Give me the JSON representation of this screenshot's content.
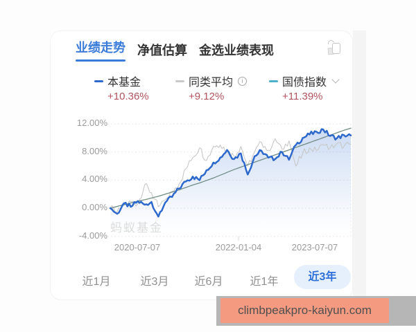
{
  "tabs": {
    "items": [
      {
        "label": "业绩走势",
        "active": true
      },
      {
        "label": "净值估算",
        "active": false
      },
      {
        "label": "金选业绩表现",
        "active": false
      }
    ]
  },
  "header": {
    "corner_icon": "copy-rotate-icon"
  },
  "legend": {
    "items": [
      {
        "name": "本基金",
        "value": "+10.36%",
        "dash_color": "#2D68CC",
        "trailing_icon": ""
      },
      {
        "name": "同类平均",
        "value": "+9.12%",
        "dash_color": "#C9C9C9",
        "trailing_icon": "info-icon"
      },
      {
        "name": "国债指数",
        "value": "+11.39%",
        "dash_color": "#4BB0CC",
        "trailing_icon": "chevron-down-icon"
      }
    ]
  },
  "icons": {
    "info_glyph": "i"
  },
  "chart_data": {
    "type": "line",
    "title": "业绩走势",
    "x_labels": [
      "2020-07-07",
      "2022-01-04",
      "2023-07-07"
    ],
    "y_ticks": [
      "12.00%",
      "8.00%",
      "4.00%",
      "0.00%",
      "-4.00%"
    ],
    "y_grid": [
      12,
      8,
      4,
      0,
      -4
    ],
    "ylim": [
      -4,
      12
    ],
    "unit": "%",
    "grid_style": "dotted-horizontal",
    "watermark": "蚂蚁基金",
    "legend_position": "top",
    "series": [
      {
        "name": "本基金",
        "change": "+10.36%",
        "color": "#2D68CC",
        "width": 2.5,
        "noise": 0.32,
        "area": true,
        "values": [
          0,
          -0.8,
          0.7,
          0.2,
          1.0,
          0.5,
          0.9,
          -1.2,
          0.8,
          1.6,
          2.8,
          3.8,
          4.5,
          4.0,
          5.4,
          6.5,
          7.2,
          8.3,
          7.0,
          7.8,
          4.8,
          7.4,
          8.2,
          7.2,
          7.0,
          8.0,
          6.9,
          9.0,
          10.0,
          10.5,
          10.9,
          11.2,
          10.3,
          10.0,
          10.4,
          10.36
        ]
      },
      {
        "name": "同类平均",
        "change": "+9.12%",
        "color": "#C8C8C8",
        "width": 1.1,
        "noise": 0.5,
        "area": false,
        "values": [
          0,
          -0.5,
          0.4,
          0.9,
          0.6,
          3.3,
          2.2,
          0.2,
          1.2,
          2.4,
          3.4,
          5.6,
          7.2,
          8.6,
          6.8,
          8.8,
          9.0,
          8.2,
          7.4,
          8.8,
          6.0,
          8.0,
          9.4,
          8.2,
          9.9,
          8.4,
          9.6,
          6.0,
          7.8,
          8.6,
          8.2,
          9.0,
          8.6,
          9.2,
          8.8,
          9.12
        ]
      },
      {
        "name": "国债指数",
        "change": "+11.39%",
        "color": "#6F8B84",
        "width": 1.3,
        "noise": 0,
        "area": false,
        "values": [
          0,
          0.25,
          0.5,
          0.75,
          1.0,
          1.2,
          1.45,
          1.7,
          2.0,
          2.3,
          2.6,
          2.95,
          3.3,
          3.6,
          3.95,
          4.3,
          4.7,
          5.1,
          5.5,
          5.85,
          6.2,
          6.55,
          6.9,
          7.25,
          7.6,
          7.95,
          8.3,
          8.65,
          9.0,
          9.35,
          9.7,
          10.05,
          10.4,
          10.75,
          11.1,
          11.39
        ]
      }
    ]
  },
  "ranges": {
    "items": [
      {
        "label": "近1月",
        "active": false
      },
      {
        "label": "近3月",
        "active": false
      },
      {
        "label": "近6月",
        "active": false
      },
      {
        "label": "近1年",
        "active": false
      },
      {
        "label": "近3年",
        "active": true
      }
    ]
  },
  "footer": {
    "watermark_text": "climbpeakpro-kaiyun.com"
  },
  "colors": {
    "accent": "#3A7BD9",
    "value_text": "#B0525E",
    "pill_bg": "#E6F0FC",
    "pill_text": "#2E6FD8",
    "banner_bg": "#F49A80",
    "banner_border": "#B6B6B6",
    "gridline": "#E9E9E9"
  }
}
